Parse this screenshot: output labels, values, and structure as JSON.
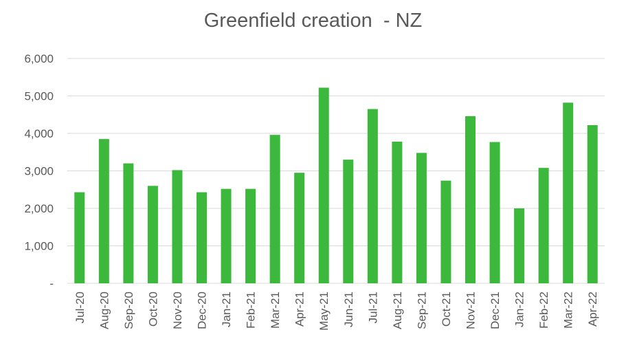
{
  "chart_data": {
    "type": "bar",
    "title": "Greenfield creation  - NZ",
    "categories": [
      "Jul-20",
      "Aug-20",
      "Sep-20",
      "Oct-20",
      "Nov-20",
      "Dec-20",
      "Jan-21",
      "Feb-21",
      "Mar-21",
      "Apr-21",
      "May-21",
      "Jun-21",
      "Jul-21",
      "Aug-21",
      "Sep-21",
      "Oct-21",
      "Nov-21",
      "Dec-21",
      "Jan-22",
      "Feb-22",
      "Mar-22",
      "Apr-22"
    ],
    "values": [
      2430,
      3850,
      3200,
      2600,
      3020,
      2430,
      2520,
      2520,
      3960,
      2950,
      5220,
      3300,
      4650,
      3780,
      3480,
      2740,
      4460,
      3770,
      2000,
      3080,
      4820,
      4220
    ],
    "ylim": [
      0,
      6000
    ],
    "yticks": [
      0,
      1000,
      2000,
      3000,
      4000,
      5000,
      6000
    ],
    "ytick_labels": [
      "-",
      "1,000",
      "2,000",
      "3,000",
      "4,000",
      "5,000",
      "6,000"
    ],
    "xlabel": "",
    "ylabel": "",
    "grid": true,
    "bar_color": "#3cb83c",
    "grid_color": "#d9d9d9"
  }
}
